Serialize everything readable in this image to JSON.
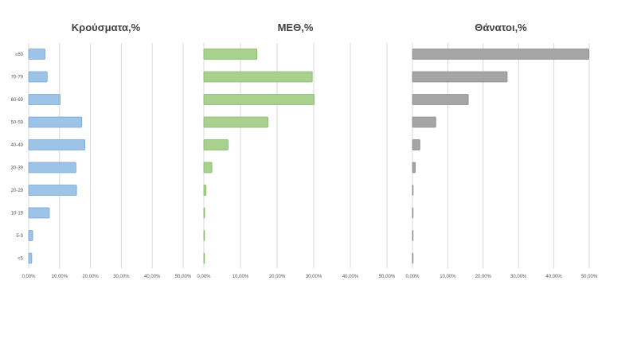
{
  "chart_data": {
    "type": "bar",
    "orientation": "horizontal",
    "categories": [
      "≥80",
      "70-79",
      "60-69",
      "50-59",
      "40-49",
      "30-39",
      "20-29",
      "10-19",
      "5-9",
      "<5"
    ],
    "xlim": [
      0,
      50
    ],
    "tick_labels": [
      "0,00%",
      "10,00%",
      "20,00%",
      "30,00%",
      "40,00%",
      "50,00%"
    ],
    "grid": true,
    "legend": "none",
    "panels": [
      {
        "title": "Κρούσματα,%",
        "color": "#9dc3e6",
        "values": [
          5.3,
          6.0,
          10.2,
          17.2,
          18.2,
          15.3,
          15.5,
          6.7,
          1.3,
          1.0
        ]
      },
      {
        "title": "ΜΕΘ,%",
        "color": "#a9d18e",
        "values": [
          14.5,
          29.6,
          30.1,
          17.5,
          6.6,
          2.2,
          0.6,
          0.2,
          0.1,
          0.1
        ]
      },
      {
        "title": "Θάνατοι,%",
        "color": "#a5a5a5",
        "values": [
          49.9,
          26.8,
          15.8,
          6.6,
          2.1,
          0.8,
          0.2,
          0.05,
          0.03,
          0.03
        ]
      }
    ]
  }
}
